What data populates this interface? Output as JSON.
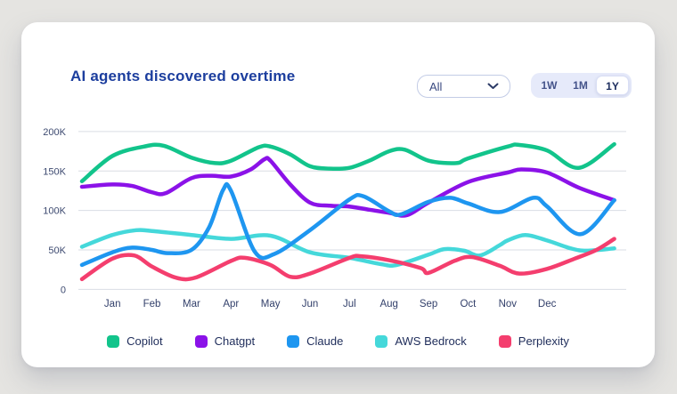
{
  "header": {
    "title": "AI agents discovered overtime"
  },
  "controls": {
    "filter_dropdown": {
      "value": "All"
    },
    "range_buttons": [
      {
        "label": "1W",
        "selected": false
      },
      {
        "label": "1M",
        "selected": false
      },
      {
        "label": "1Y",
        "selected": true
      }
    ]
  },
  "colors": {
    "page_background": "#e5e4e1",
    "card_background": "#ffffff",
    "title": "#1c3e9e",
    "gridline": "#dadde4",
    "axis_text": "#3d4a70"
  },
  "chart_data": {
    "type": "line",
    "title": "AI agents discovered overtime",
    "unit": "thousands",
    "categories": [
      "Jan",
      "Feb",
      "Mar",
      "Apr",
      "May",
      "Jun",
      "Jul",
      "Aug",
      "Sep",
      "Oct",
      "Nov",
      "Dec"
    ],
    "y_ticks": [
      {
        "label": "200K",
        "value": 200
      },
      {
        "label": "150K",
        "value": 150
      },
      {
        "label": "100K",
        "value": 100
      },
      {
        "label": "50K",
        "value": 50
      },
      {
        "label": "0",
        "value": 0
      }
    ],
    "ylim_k": [
      0,
      200
    ],
    "grid": "horizontal",
    "legend_position": "bottom",
    "draw_order": [
      3,
      4,
      1,
      2,
      0
    ],
    "series": [
      {
        "name": "Copilot",
        "color": "#12c48b",
        "monthly_values_k": [
          169,
          180,
          167,
          163,
          181,
          156,
          154,
          175,
          163,
          166,
          181,
          176
        ],
        "curve_points": [
          [
            -0.77,
            137
          ],
          [
            0,
            169
          ],
          [
            0.8,
            181
          ],
          [
            1.3,
            182
          ],
          [
            2,
            167
          ],
          [
            2.6,
            160
          ],
          [
            3,
            163
          ],
          [
            3.7,
            180
          ],
          [
            4,
            181
          ],
          [
            4.5,
            171
          ],
          [
            5,
            156
          ],
          [
            5.5,
            153
          ],
          [
            6,
            154
          ],
          [
            6.5,
            163
          ],
          [
            7,
            175
          ],
          [
            7.4,
            177
          ],
          [
            8,
            163
          ],
          [
            8.7,
            160
          ],
          [
            9,
            166
          ],
          [
            10,
            181
          ],
          [
            10.3,
            183
          ],
          [
            11,
            176
          ],
          [
            11.8,
            154
          ],
          [
            12.7,
            184
          ]
        ]
      },
      {
        "name": "Chatgpt",
        "color": "#8b12e8",
        "monthly_values_k": [
          133,
          123,
          141,
          143,
          163,
          110,
          105,
          97,
          110,
          136,
          148,
          148
        ],
        "curve_points": [
          [
            -0.77,
            130
          ],
          [
            0,
            133
          ],
          [
            0.5,
            131
          ],
          [
            1,
            123
          ],
          [
            1.35,
            122
          ],
          [
            2,
            141
          ],
          [
            2.5,
            144
          ],
          [
            3,
            143
          ],
          [
            3.5,
            152
          ],
          [
            3.85,
            165
          ],
          [
            4,
            163
          ],
          [
            4.5,
            133
          ],
          [
            5,
            110
          ],
          [
            5.5,
            106
          ],
          [
            6,
            105
          ],
          [
            6.5,
            101
          ],
          [
            7,
            97
          ],
          [
            7.45,
            94
          ],
          [
            8,
            110
          ],
          [
            9,
            136
          ],
          [
            10,
            148
          ],
          [
            10.35,
            152
          ],
          [
            11,
            148
          ],
          [
            11.8,
            129
          ],
          [
            12.7,
            113
          ]
        ]
      },
      {
        "name": "Claude",
        "color": "#1e96f0",
        "monthly_values_k": [
          47,
          50,
          50,
          125,
          46,
          75,
          114,
          99,
          111,
          109,
          102,
          105
        ],
        "curve_points": [
          [
            -0.77,
            31
          ],
          [
            0,
            47
          ],
          [
            0.5,
            53
          ],
          [
            1,
            50
          ],
          [
            1.4,
            46
          ],
          [
            2,
            50
          ],
          [
            2.45,
            79
          ],
          [
            2.8,
            126
          ],
          [
            3,
            125
          ],
          [
            3.6,
            48
          ],
          [
            4.1,
            45
          ],
          [
            5,
            75
          ],
          [
            6,
            114
          ],
          [
            6.35,
            118
          ],
          [
            7,
            99
          ],
          [
            7.3,
            95
          ],
          [
            8,
            111
          ],
          [
            8.55,
            116
          ],
          [
            9,
            109
          ],
          [
            9.8,
            98
          ],
          [
            10.65,
            116
          ],
          [
            11,
            105
          ],
          [
            11.85,
            70
          ],
          [
            12.7,
            113
          ]
        ]
      },
      {
        "name": "AWS Bedrock",
        "color": "#45d8da",
        "monthly_values_k": [
          69,
          74,
          69,
          64,
          68,
          47,
          40,
          32,
          44,
          48,
          62,
          62
        ],
        "curve_points": [
          [
            -0.77,
            54
          ],
          [
            0,
            69
          ],
          [
            0.6,
            75
          ],
          [
            1,
            74
          ],
          [
            2,
            69
          ],
          [
            3,
            64
          ],
          [
            4,
            68
          ],
          [
            5,
            47
          ],
          [
            6,
            40
          ],
          [
            6.8,
            32
          ],
          [
            7.2,
            31
          ],
          [
            8,
            44
          ],
          [
            8.4,
            51
          ],
          [
            8.9,
            49
          ],
          [
            9.3,
            43
          ],
          [
            9.8,
            56
          ],
          [
            10,
            62
          ],
          [
            10.45,
            69
          ],
          [
            11,
            62
          ],
          [
            11.6,
            52
          ],
          [
            12,
            49
          ],
          [
            12.7,
            52
          ]
        ]
      },
      {
        "name": "Perplexity",
        "color": "#f43e6e",
        "monthly_values_k": [
          39,
          29,
          15,
          36,
          31,
          20,
          40,
          37,
          21,
          40,
          24,
          26
        ],
        "curve_points": [
          [
            -0.77,
            13
          ],
          [
            0,
            39
          ],
          [
            0.55,
            43
          ],
          [
            1,
            29
          ],
          [
            1.6,
            15
          ],
          [
            2.1,
            15
          ],
          [
            3,
            36
          ],
          [
            3.35,
            40
          ],
          [
            4,
            31
          ],
          [
            4.5,
            16
          ],
          [
            5,
            20
          ],
          [
            6,
            40
          ],
          [
            6.3,
            42
          ],
          [
            7,
            37
          ],
          [
            7.8,
            27
          ],
          [
            8,
            21
          ],
          [
            8.65,
            36
          ],
          [
            9.1,
            41
          ],
          [
            9.8,
            30
          ],
          [
            10.3,
            20
          ],
          [
            11,
            26
          ],
          [
            11.7,
            39
          ],
          [
            12.25,
            50
          ],
          [
            12.7,
            64
          ]
        ]
      }
    ]
  }
}
